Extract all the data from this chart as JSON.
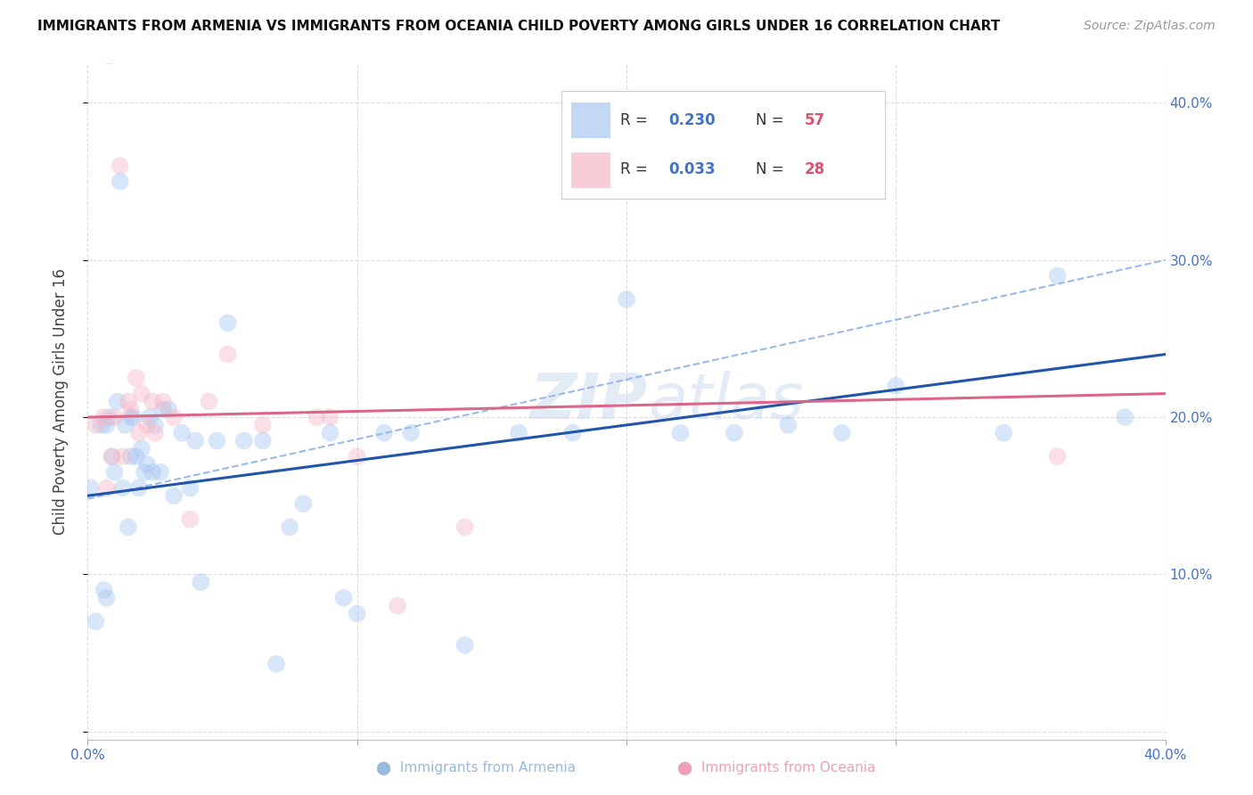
{
  "title": "IMMIGRANTS FROM ARMENIA VS IMMIGRANTS FROM OCEANIA CHILD POVERTY AMONG GIRLS UNDER 16 CORRELATION CHART",
  "source": "Source: ZipAtlas.com",
  "ylabel": "Child Poverty Among Girls Under 16",
  "xlim": [
    0.0,
    0.4
  ],
  "ylim": [
    -0.005,
    0.425
  ],
  "armenia_color": "#A8C8F0",
  "oceania_color": "#F5B8C8",
  "armenia_edge_color": "#7AAAD8",
  "oceania_edge_color": "#E890A8",
  "armenia_trend_color": "#2255AA",
  "oceania_trend_color": "#DD6688",
  "dashed_trend_color": "#99BBE8",
  "background_color": "#FFFFFF",
  "watermark_color": "#C8D8EE",
  "armenia_x": [
    0.001,
    0.003,
    0.005,
    0.006,
    0.007,
    0.007,
    0.008,
    0.009,
    0.01,
    0.011,
    0.012,
    0.013,
    0.014,
    0.015,
    0.016,
    0.016,
    0.017,
    0.018,
    0.019,
    0.02,
    0.021,
    0.022,
    0.023,
    0.024,
    0.025,
    0.027,
    0.028,
    0.03,
    0.032,
    0.035,
    0.038,
    0.04,
    0.042,
    0.048,
    0.052,
    0.058,
    0.065,
    0.07,
    0.075,
    0.08,
    0.09,
    0.095,
    0.1,
    0.11,
    0.12,
    0.14,
    0.16,
    0.18,
    0.2,
    0.22,
    0.24,
    0.26,
    0.28,
    0.3,
    0.34,
    0.36,
    0.385
  ],
  "armenia_y": [
    0.155,
    0.07,
    0.195,
    0.09,
    0.085,
    0.195,
    0.2,
    0.175,
    0.165,
    0.21,
    0.35,
    0.155,
    0.195,
    0.13,
    0.175,
    0.2,
    0.2,
    0.175,
    0.155,
    0.18,
    0.165,
    0.17,
    0.2,
    0.165,
    0.195,
    0.165,
    0.205,
    0.205,
    0.15,
    0.19,
    0.155,
    0.185,
    0.095,
    0.185,
    0.26,
    0.185,
    0.185,
    0.043,
    0.13,
    0.145,
    0.19,
    0.085,
    0.075,
    0.19,
    0.19,
    0.055,
    0.19,
    0.19,
    0.275,
    0.19,
    0.19,
    0.195,
    0.19,
    0.22,
    0.19,
    0.29,
    0.2
  ],
  "oceania_x": [
    0.003,
    0.006,
    0.007,
    0.008,
    0.009,
    0.01,
    0.012,
    0.013,
    0.015,
    0.016,
    0.018,
    0.019,
    0.02,
    0.022,
    0.024,
    0.025,
    0.028,
    0.032,
    0.038,
    0.045,
    0.052,
    0.065,
    0.085,
    0.09,
    0.1,
    0.115,
    0.14,
    0.36
  ],
  "oceania_y": [
    0.195,
    0.2,
    0.155,
    0.43,
    0.175,
    0.2,
    0.36,
    0.175,
    0.21,
    0.205,
    0.225,
    0.19,
    0.215,
    0.195,
    0.21,
    0.19,
    0.21,
    0.2,
    0.135,
    0.21,
    0.24,
    0.195,
    0.2,
    0.2,
    0.175,
    0.08,
    0.13,
    0.175
  ],
  "armenia_trend_y_start": 0.15,
  "armenia_trend_y_end": 0.24,
  "dashed_trend_y_start": 0.148,
  "dashed_trend_y_end": 0.3,
  "oceania_trend_y_start": 0.2,
  "oceania_trend_y_end": 0.215,
  "marker_size": 200,
  "marker_alpha": 0.45,
  "marker_linewidth": 0.0
}
